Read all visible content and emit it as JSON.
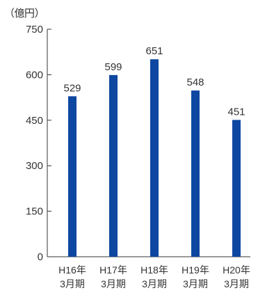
{
  "chart_data": {
    "type": "bar",
    "unit_label": "（億円）",
    "categories": [
      [
        "H16年",
        "3月期"
      ],
      [
        "H17年",
        "3月期"
      ],
      [
        "H18年",
        "3月期"
      ],
      [
        "H19年",
        "3月期"
      ],
      [
        "H20年",
        "3月期"
      ]
    ],
    "values": [
      529,
      599,
      651,
      548,
      451
    ],
    "ylim": [
      0,
      750
    ],
    "yticks": [
      0,
      150,
      300,
      450,
      600,
      750
    ],
    "grid": false,
    "bar_color": "#0d47a1",
    "axis_color": "#333333",
    "text_color": "#333333"
  }
}
